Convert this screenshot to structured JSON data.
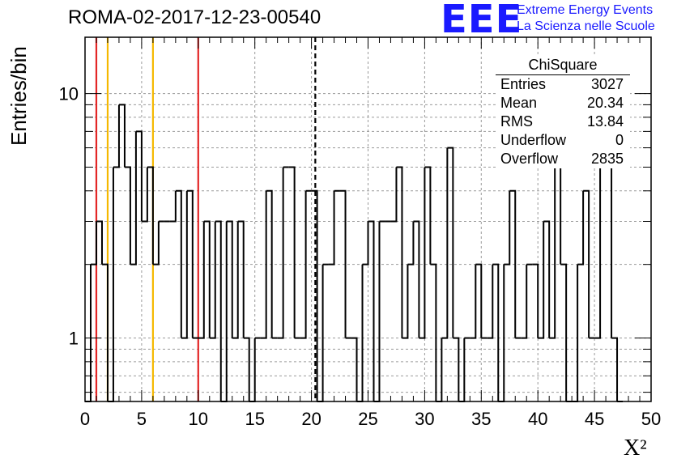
{
  "header": {
    "title": "ROMA-02-2017-12-23-00540",
    "logo_text": "EEE",
    "logo_line1": "Extreme Energy Events",
    "logo_line2": "La Scienza nelle Scuole"
  },
  "stats_box": {
    "title": "ChiSquare",
    "rows": [
      {
        "label": "Entries",
        "value": "3027"
      },
      {
        "label": "Mean",
        "value": "20.34"
      },
      {
        "label": "RMS",
        "value": "13.84"
      },
      {
        "label": "Underflow",
        "value": "0"
      },
      {
        "label": "Overflow",
        "value": "2835"
      }
    ]
  },
  "colors": {
    "histogram": "#000000",
    "red_line": "#e32626",
    "orange_line": "#f5b800",
    "mean_line": "#000000",
    "grid": "#9a9a9a",
    "logo": "#1a1aff"
  },
  "chart_data": {
    "type": "histogram",
    "xlabel": "X²",
    "ylabel": "Entries/bin",
    "xlim": [
      0,
      50
    ],
    "ylim": [
      0.55,
      17
    ],
    "yscale": "log",
    "bin_width": 0.5,
    "x_ticks": [
      "0",
      "5",
      "10",
      "15",
      "20",
      "25",
      "30",
      "35",
      "40",
      "45",
      "50"
    ],
    "y_ticks": [
      {
        "value": 1,
        "label": "1"
      },
      {
        "value": 10,
        "label": "10"
      }
    ],
    "grid": true,
    "vertical_lines": [
      {
        "x": 1,
        "color": "red"
      },
      {
        "x": 2,
        "color": "orange"
      },
      {
        "x": 6,
        "color": "orange"
      },
      {
        "x": 10,
        "color": "red"
      },
      {
        "x": 20.34,
        "color": "black",
        "style": "dashed"
      }
    ],
    "bin_values": [
      0,
      2,
      3,
      2,
      0,
      5,
      9,
      5,
      2,
      7,
      3,
      5,
      2,
      3,
      3,
      3,
      4,
      1,
      4,
      1,
      1,
      3,
      1,
      3,
      0,
      3,
      1,
      3,
      1,
      0,
      1,
      1,
      4,
      1,
      1,
      5,
      5,
      1,
      1,
      4,
      4,
      0,
      2,
      2,
      4,
      4,
      1,
      1,
      0,
      2,
      3,
      0,
      3,
      3,
      3,
      5,
      1,
      2,
      3,
      1,
      5,
      2,
      0,
      1,
      6,
      1,
      0,
      1,
      1,
      2,
      1,
      1,
      2,
      0,
      2,
      4,
      1,
      1,
      2,
      2,
      1,
      3,
      1,
      9,
      2,
      0,
      0,
      2,
      4,
      1,
      1,
      5,
      6,
      1,
      0
    ]
  }
}
